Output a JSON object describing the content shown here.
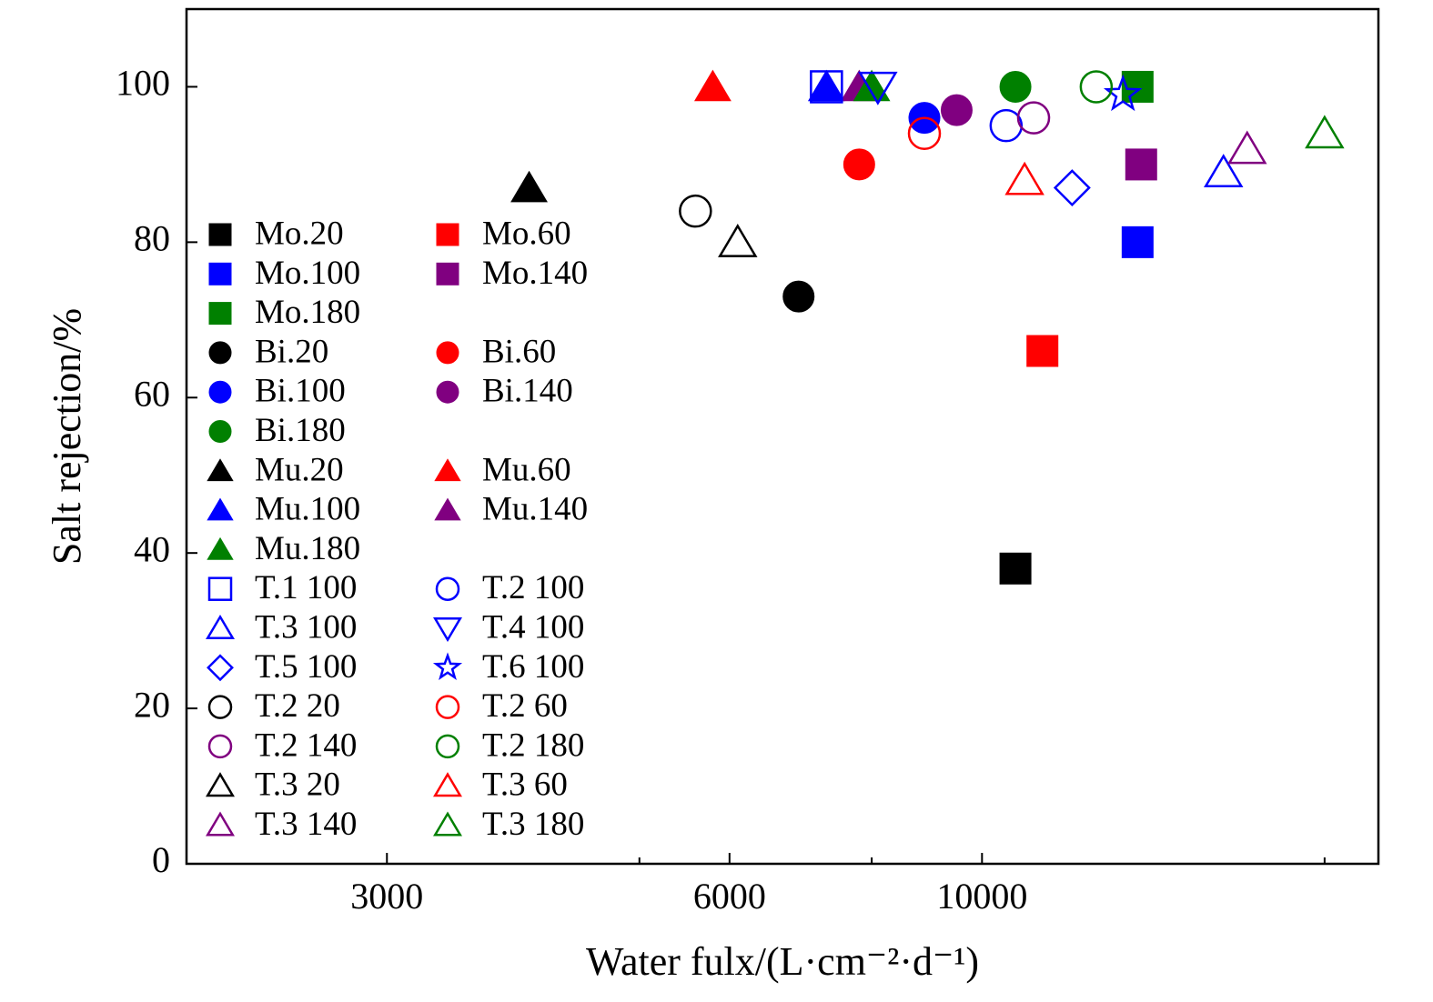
{
  "chart_data": {
    "type": "scatter",
    "x_label": "Water fulx/(L·cm⁻²·d⁻¹)",
    "y_label": "Salt rejection/%",
    "x_log": true,
    "xlim": [
      2000,
      22300
    ],
    "xticks": [
      3000,
      6000,
      10000
    ],
    "x_minor_ticks": [
      5000,
      8000,
      20000
    ],
    "ylim": [
      0,
      110
    ],
    "yticks": [
      0,
      20,
      40,
      60,
      80,
      100
    ],
    "grid": false,
    "legend": "left",
    "series": [
      {
        "name": "Mo.20",
        "color": "#000000",
        "marker": "square",
        "filled": true,
        "x": [
          10700
        ],
        "y": [
          38
        ]
      },
      {
        "name": "Mo.60",
        "color": "#ff0000",
        "marker": "square",
        "filled": true,
        "x": [
          11300
        ],
        "y": [
          66
        ]
      },
      {
        "name": "Mo.100",
        "color": "#0000ff",
        "marker": "square",
        "filled": true,
        "x": [
          13700
        ],
        "y": [
          80
        ]
      },
      {
        "name": "Mo.140",
        "color": "#800080",
        "marker": "square",
        "filled": true,
        "x": [
          13800
        ],
        "y": [
          90
        ]
      },
      {
        "name": "Mo.180",
        "color": "#008000",
        "marker": "square",
        "filled": true,
        "x": [
          13700
        ],
        "y": [
          100
        ]
      },
      {
        "name": "Bi.20",
        "color": "#000000",
        "marker": "circle",
        "filled": true,
        "x": [
          6900
        ],
        "y": [
          73
        ]
      },
      {
        "name": "Bi.60",
        "color": "#ff0000",
        "marker": "circle",
        "filled": true,
        "x": [
          7800
        ],
        "y": [
          90
        ]
      },
      {
        "name": "Bi.100",
        "color": "#0000ff",
        "marker": "circle",
        "filled": true,
        "x": [
          8900
        ],
        "y": [
          96
        ]
      },
      {
        "name": "Bi.140",
        "color": "#800080",
        "marker": "circle",
        "filled": true,
        "x": [
          9500
        ],
        "y": [
          97
        ]
      },
      {
        "name": "Bi.180",
        "color": "#008000",
        "marker": "circle",
        "filled": true,
        "x": [
          10700
        ],
        "y": [
          100
        ]
      },
      {
        "name": "Mu.20",
        "color": "#000000",
        "marker": "triangle",
        "filled": true,
        "x": [
          4000
        ],
        "y": [
          87
        ]
      },
      {
        "name": "Mu.60",
        "color": "#ff0000",
        "marker": "triangle",
        "filled": true,
        "x": [
          5800
        ],
        "y": [
          100
        ]
      },
      {
        "name": "Mu.100",
        "color": "#0000ff",
        "marker": "triangle",
        "filled": true,
        "x": [
          7300
        ],
        "y": [
          100
        ]
      },
      {
        "name": "Mu.140",
        "color": "#800080",
        "marker": "triangle",
        "filled": true,
        "x": [
          7800
        ],
        "y": [
          100
        ]
      },
      {
        "name": "Mu.180",
        "color": "#008000",
        "marker": "triangle",
        "filled": true,
        "x": [
          8000
        ],
        "y": [
          100
        ]
      },
      {
        "name": "T.1 100",
        "color": "#0000ff",
        "marker": "square",
        "filled": false,
        "x": [
          7300
        ],
        "y": [
          100
        ]
      },
      {
        "name": "T.2 100",
        "color": "#0000ff",
        "marker": "circle",
        "filled": false,
        "x": [
          10500
        ],
        "y": [
          95
        ]
      },
      {
        "name": "T.3 100",
        "color": "#0000ff",
        "marker": "triangle",
        "filled": false,
        "x": [
          16300
        ],
        "y": [
          89
        ]
      },
      {
        "name": "T.4 100",
        "color": "#0000ff",
        "marker": "triangle-down",
        "filled": false,
        "x": [
          8100
        ],
        "y": [
          100
        ]
      },
      {
        "name": "T.5 100",
        "color": "#0000ff",
        "marker": "diamond",
        "filled": false,
        "x": [
          12000
        ],
        "y": [
          87
        ]
      },
      {
        "name": "T.6 100",
        "color": "#0000ff",
        "marker": "star",
        "filled": false,
        "x": [
          13300
        ],
        "y": [
          99
        ]
      },
      {
        "name": "T.2 20",
        "color": "#000000",
        "marker": "circle",
        "filled": false,
        "x": [
          5600
        ],
        "y": [
          84
        ]
      },
      {
        "name": "T.2 60",
        "color": "#ff0000",
        "marker": "circle",
        "filled": false,
        "x": [
          8900
        ],
        "y": [
          94
        ]
      },
      {
        "name": "T.2 140",
        "color": "#800080",
        "marker": "circle",
        "filled": false,
        "x": [
          11100
        ],
        "y": [
          96
        ]
      },
      {
        "name": "T.2 180",
        "color": "#008000",
        "marker": "circle",
        "filled": false,
        "x": [
          12600
        ],
        "y": [
          100
        ]
      },
      {
        "name": "T.3 20",
        "color": "#000000",
        "marker": "triangle",
        "filled": false,
        "x": [
          6100
        ],
        "y": [
          80
        ]
      },
      {
        "name": "T.3 60",
        "color": "#ff0000",
        "marker": "triangle",
        "filled": false,
        "x": [
          10900
        ],
        "y": [
          88
        ]
      },
      {
        "name": "T.3 140",
        "color": "#800080",
        "marker": "triangle",
        "filled": false,
        "x": [
          17100
        ],
        "y": [
          92
        ]
      },
      {
        "name": "T.3 180",
        "color": "#008000",
        "marker": "triangle",
        "filled": false,
        "x": [
          20000
        ],
        "y": [
          94
        ]
      }
    ]
  }
}
